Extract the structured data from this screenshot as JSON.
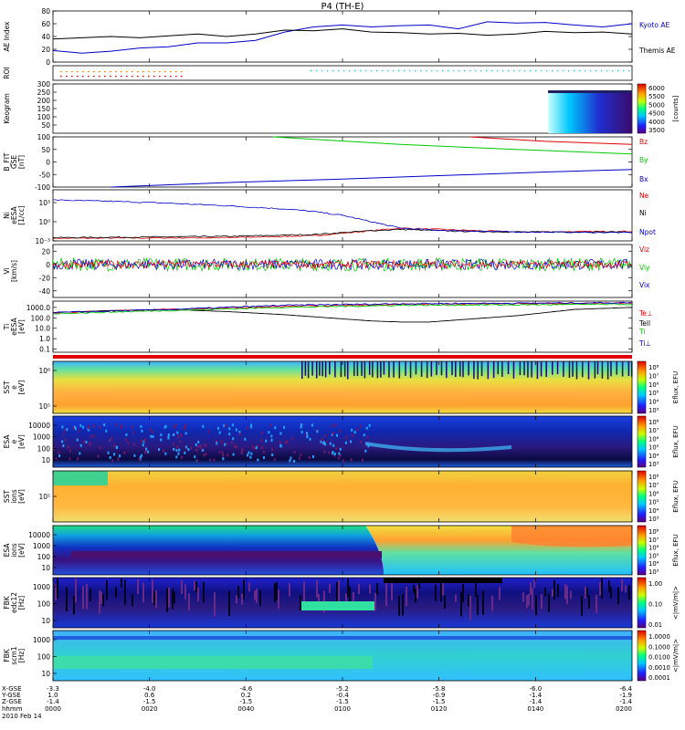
{
  "title": "P4 (TH-E)",
  "date_label": "2010 Feb 14",
  "colors": {
    "blue": "#0000c8",
    "green": "#00c800",
    "red": "#e00000",
    "black": "#000000"
  },
  "chart_data": [
    {
      "type": "line",
      "id": "ae",
      "ylabel": [
        "AE Index"
      ],
      "ylim": [
        0,
        80
      ],
      "yticks": [
        0,
        20,
        40,
        60,
        80
      ],
      "series": [
        {
          "name": "Kyoto AE",
          "color": "#0000c8",
          "x": [
            0,
            0.05,
            0.1,
            0.15,
            0.2,
            0.25,
            0.3,
            0.35,
            0.4,
            0.45,
            0.5,
            0.55,
            0.6,
            0.65,
            0.7,
            0.75,
            0.8,
            0.85,
            0.9,
            0.95,
            1.0
          ],
          "values": [
            18,
            14,
            17,
            22,
            24,
            30,
            30,
            34,
            47,
            55,
            58,
            55,
            57,
            58,
            52,
            63,
            61,
            62,
            58,
            55,
            60
          ]
        },
        {
          "name": "Themis AE",
          "color": "#000000",
          "x": [
            0,
            0.05,
            0.1,
            0.15,
            0.2,
            0.25,
            0.3,
            0.35,
            0.4,
            0.45,
            0.5,
            0.55,
            0.6,
            0.65,
            0.7,
            0.75,
            0.8,
            0.85,
            0.9,
            0.95,
            1.0
          ],
          "values": [
            36,
            38,
            40,
            38,
            41,
            44,
            40,
            44,
            50,
            49,
            52,
            47,
            46,
            44,
            45,
            42,
            44,
            48,
            46,
            47,
            44
          ]
        }
      ]
    },
    {
      "type": "table",
      "id": "roi",
      "ylabel": [
        "ROI"
      ]
    },
    {
      "type": "heatmap",
      "id": "keogram",
      "ylabel": [
        "Keogram"
      ],
      "ylim": [
        0,
        300
      ],
      "yticks": [
        50,
        100,
        150,
        200,
        250,
        300
      ],
      "colorbar": {
        "ticks": [
          3500,
          4000,
          4500,
          5000,
          5500,
          6000
        ],
        "label": "[counts]"
      }
    },
    {
      "type": "line",
      "id": "bfit",
      "ylabel": [
        "B_FIT",
        "GSE",
        "[nT]"
      ],
      "ylim": [
        -100,
        100
      ],
      "yticks": [
        -100,
        -50,
        0,
        50,
        100
      ],
      "series": [
        {
          "name": "Bz",
          "color": "#e00000",
          "x": [
            0.72,
            0.85,
            1.0
          ],
          "values": [
            100,
            82,
            70
          ]
        },
        {
          "name": "By",
          "color": "#00c800",
          "x": [
            0.38,
            0.6,
            0.8,
            1.0
          ],
          "values": [
            100,
            70,
            50,
            32
          ]
        },
        {
          "name": "Bx",
          "color": "#0000c8",
          "x": [
            0.1,
            0.3,
            0.5,
            0.7,
            0.85,
            1.0
          ],
          "values": [
            -100,
            -82,
            -68,
            -52,
            -40,
            -30
          ]
        }
      ]
    },
    {
      "type": "line",
      "id": "ni",
      "ylabel": [
        "Ni",
        "eESA",
        "[1/cc]"
      ],
      "ylim": [
        -3,
        5
      ],
      "log": true,
      "yticks": [
        -3,
        0,
        3
      ],
      "series": [
        {
          "name": "Ne",
          "color": "#e00000",
          "x": [
            0,
            0.3,
            0.45,
            0.55,
            0.6,
            0.7,
            0.8,
            1.0
          ],
          "values": [
            -2.6,
            -2.5,
            -2.2,
            -1.4,
            -1.0,
            -1.3,
            -1.6,
            -1.5
          ]
        },
        {
          "name": "Ni",
          "color": "#000000",
          "x": [
            0,
            0.3,
            0.45,
            0.55,
            0.6,
            0.7,
            0.8,
            1.0
          ],
          "values": [
            -2.5,
            -2.3,
            -2.0,
            -1.4,
            -1.2,
            -1.5,
            -1.6,
            -1.6
          ]
        },
        {
          "name": "Npot",
          "color": "#0000c8",
          "x": [
            0,
            0.1,
            0.2,
            0.3,
            0.4,
            0.45,
            0.5,
            0.55,
            0.6,
            0.65,
            0.7,
            0.8,
            1.0
          ],
          "values": [
            3.4,
            3.2,
            2.9,
            2.5,
            2.0,
            1.6,
            1.0,
            0.0,
            -1.0,
            -1.3,
            -1.4,
            -1.6,
            -1.7
          ]
        }
      ]
    },
    {
      "type": "line",
      "id": "vi",
      "ylabel": [
        "Vi",
        "[km/s]"
      ],
      "ylim": [
        -50,
        30
      ],
      "yticks": [
        -40,
        -20,
        0,
        20
      ],
      "series": [
        {
          "name": "Viz",
          "color": "#e00000",
          "amplitude": 6
        },
        {
          "name": "Viy",
          "color": "#00c800",
          "amplitude": 10
        },
        {
          "name": "Vix",
          "color": "#0000c8",
          "amplitude": 8
        }
      ]
    },
    {
      "type": "line",
      "id": "ti",
      "ylabel": [
        "Ti",
        "eESA",
        "[eV]"
      ],
      "log": true,
      "ylim": [
        -1.3,
        3.6
      ],
      "yticks": [
        -1,
        0,
        1,
        2,
        3
      ],
      "yticklabels": [
        "0.1",
        "1.0",
        "10.0",
        "100.0",
        "1000.0"
      ],
      "series": [
        {
          "name": "Tell",
          "color": "#000000",
          "x": [
            0,
            0.1,
            0.2,
            0.3,
            0.4,
            0.45,
            0.5,
            0.55,
            0.6,
            0.65,
            0.7,
            0.75,
            0.8,
            0.85,
            0.9,
            1.0
          ],
          "values": [
            2.5,
            2.7,
            2.8,
            2.6,
            2.3,
            2.1,
            1.9,
            1.7,
            1.6,
            1.6,
            1.8,
            2.0,
            2.2,
            2.5,
            2.8,
            3.0
          ]
        },
        {
          "name": "Te⊥",
          "color": "#e00000",
          "x": [
            0,
            0.2,
            0.4,
            0.6,
            1.0
          ],
          "values": [
            2.5,
            2.8,
            3.1,
            3.3,
            3.4
          ]
        },
        {
          "name": "Ti",
          "color": "#00c800",
          "x": [
            0,
            0.2,
            0.4,
            0.6,
            1.0
          ],
          "values": [
            2.4,
            2.7,
            3.0,
            3.2,
            3.3
          ]
        },
        {
          "name": "Ti⊥",
          "color": "#0000c8",
          "x": [
            0,
            0.2,
            0.4,
            0.6,
            1.0
          ],
          "values": [
            2.5,
            2.8,
            3.2,
            3.35,
            3.45
          ]
        }
      ]
    },
    {
      "type": "heatmap",
      "id": "sst_e",
      "ylabel": [
        "SST",
        "e",
        "[eV]"
      ],
      "yticks": [
        "10⁶",
        "10⁵"
      ],
      "colorbar": {
        "ticks": [
          "10⁸",
          "10⁷",
          "10⁶",
          "10⁵",
          "10⁴",
          "10³"
        ],
        "label": "Eflux, EFU"
      }
    },
    {
      "type": "heatmap",
      "id": "esa_e",
      "ylabel": [
        "ESA",
        "e",
        "[eV]"
      ],
      "yticks": [
        "10000",
        "1000",
        "100",
        "10"
      ],
      "colorbar": {
        "ticks": [
          "10⁸",
          "10⁷",
          "10⁶",
          "10⁵",
          "10⁴",
          "10³"
        ],
        "label": "Eflux, EFU"
      }
    },
    {
      "type": "heatmap",
      "id": "sst_i",
      "ylabel": [
        "SST",
        "ions",
        "[eV]"
      ],
      "yticks": [
        "10⁵"
      ],
      "colorbar": {
        "ticks": [
          "10⁸",
          "10⁷",
          "10⁶",
          "10⁵",
          "10⁴",
          "10³"
        ],
        "label": "Eflux, EFU"
      }
    },
    {
      "type": "heatmap",
      "id": "esa_i",
      "ylabel": [
        "ESA",
        "ions",
        "[eV]"
      ],
      "yticks": [
        "10000",
        "1000",
        "100",
        "10"
      ],
      "colorbar": {
        "ticks": [
          "10⁸",
          "10⁷",
          "10⁶",
          "10⁵",
          "10⁴",
          "10³"
        ],
        "label": "Eflux, EFU"
      }
    },
    {
      "type": "heatmap",
      "id": "fbk_e12",
      "ylabel": [
        "FBK",
        "edc12",
        "[Hz]"
      ],
      "yticks": [
        "1000",
        "100",
        "10"
      ],
      "colorbar": {
        "ticks": [
          "1.00",
          "0.10",
          "0.01"
        ],
        "label": "<|mV/m|>"
      }
    },
    {
      "type": "heatmap",
      "id": "fbk_b",
      "ylabel": [
        "FBK",
        "scm1",
        "[Hz]"
      ],
      "yticks": [
        "1000",
        "100",
        "10"
      ],
      "colorbar": {
        "ticks": [
          "1.0000",
          "0.1000",
          "0.0100",
          "0.0010",
          "0.0001"
        ],
        "label": "<|mV/m|>"
      }
    }
  ],
  "time_axis": {
    "row_labels": [
      "X-GSE",
      "Y-GSE",
      "Z-GSE",
      "hhmm"
    ],
    "ticks": [
      {
        "x": "-3.3",
        "y": "1.0",
        "z": "-1.4",
        "t": "0000"
      },
      {
        "x": "-4.0",
        "y": "0.6",
        "z": "-1.5",
        "t": "0020"
      },
      {
        "x": "-4.6",
        "y": "0.2",
        "z": "-1.5",
        "t": "0040"
      },
      {
        "x": "-5.2",
        "y": "-0.4",
        "z": "-1.5",
        "t": "0100"
      },
      {
        "x": "-5.8",
        "y": "-0.9",
        "z": "-1.5",
        "t": "0120"
      },
      {
        "x": "-6.0",
        "y": "-1.4",
        "z": "-1.4",
        "t": "0140"
      },
      {
        "x": "-6.4",
        "y": "-1.9",
        "z": "-1.4",
        "t": "0200"
      }
    ]
  }
}
